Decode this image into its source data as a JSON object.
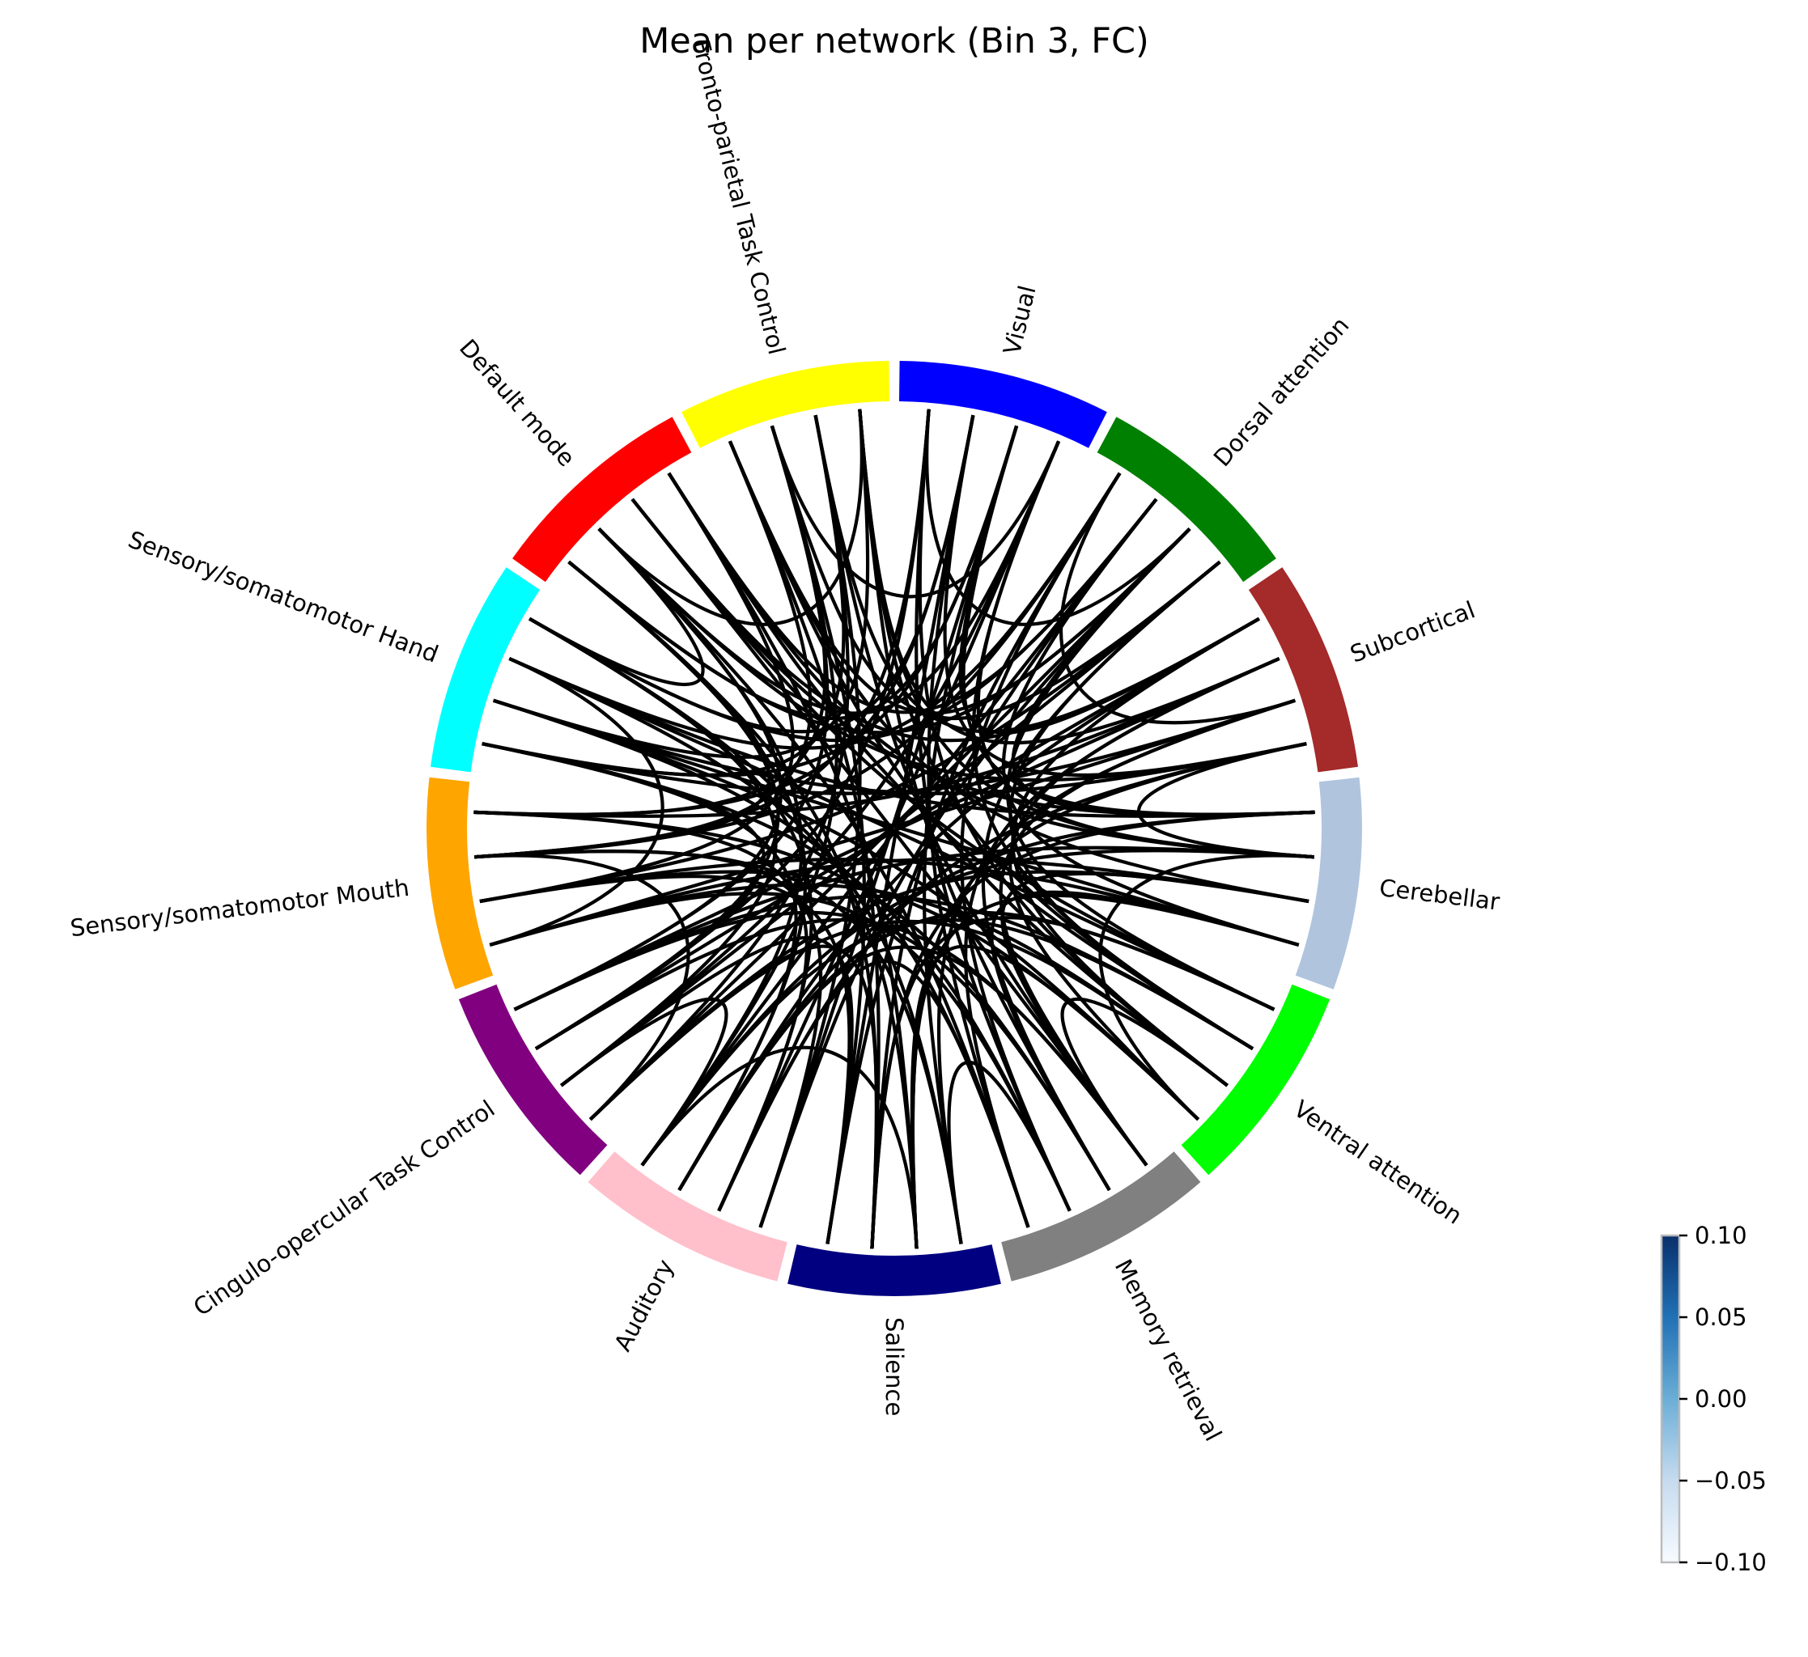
{
  "title": "Mean per network (Bin 3, FC)",
  "networks": [
    {
      "name": "Visual",
      "color": "#0000ff"
    },
    {
      "name": "Dorsal attention",
      "color": "#008000"
    },
    {
      "name": "Subcortical",
      "color": "#a52a2a"
    },
    {
      "name": "Cerebellar",
      "color": "#b0c4de"
    },
    {
      "name": "Ventral attention",
      "color": "#00ff00"
    },
    {
      "name": "Memory retrieval",
      "color": "#808080"
    },
    {
      "name": "Salience",
      "color": "#000080"
    },
    {
      "name": "Auditory",
      "color": "#ffc0cb"
    },
    {
      "name": "Cingulo-opercular Task Control",
      "color": "#800080"
    },
    {
      "name": "Sensory/somatomotor Mouth",
      "color": "#ffa500"
    },
    {
      "name": "Sensory/somatomotor Hand",
      "color": "#00ffff"
    },
    {
      "name": "Default mode",
      "color": "#ff0000"
    },
    {
      "name": "Fronto-parietal Task Control",
      "color": "#ffff00"
    }
  ],
  "edge_color": "#000000",
  "colorbar": {
    "ticks": [
      "0.10",
      "0.05",
      "0.00",
      "−0.05",
      "−0.10"
    ],
    "vmin": -0.1,
    "vmax": 0.1,
    "colormap": [
      "#f7fbff",
      "#c6dbef",
      "#6baed6",
      "#2171b5",
      "#08306b"
    ]
  }
}
